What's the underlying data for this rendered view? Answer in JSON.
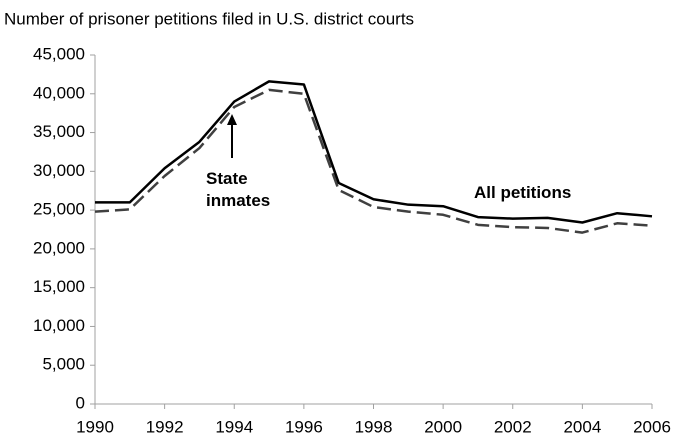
{
  "chart_data": {
    "type": "line",
    "title": "Number of prisoner petitions filed in U.S. district courts",
    "x": [
      1990,
      1991,
      1992,
      1993,
      1994,
      1995,
      1996,
      1997,
      1998,
      1999,
      2000,
      2001,
      2002,
      2003,
      2004,
      2005,
      2006
    ],
    "series": [
      {
        "name": "All petitions",
        "color": "#000000",
        "dash": "solid",
        "values": [
          26000,
          26000,
          30400,
          33800,
          39000,
          41600,
          41200,
          28500,
          26400,
          25700,
          25500,
          24100,
          23900,
          24000,
          23400,
          24600,
          24200
        ]
      },
      {
        "name": "State inmates",
        "color": "#404040",
        "dash": "dashed",
        "values": [
          24800,
          25100,
          29400,
          33000,
          38300,
          40500,
          40000,
          27600,
          25400,
          24800,
          24400,
          23100,
          22800,
          22700,
          22100,
          23300,
          23000
        ]
      }
    ],
    "xlim": [
      1990,
      2006
    ],
    "xticks": [
      1990,
      1992,
      1994,
      1996,
      1998,
      2000,
      2002,
      2004,
      2006
    ],
    "ylim": [
      0,
      45000
    ],
    "yticks": [
      0,
      {
        "value": 5000,
        "label": "5,000"
      },
      {
        "value": 10000,
        "label": "10,000"
      },
      {
        "value": 15000,
        "label": "15,000"
      },
      {
        "value": 20000,
        "label": "20,000"
      },
      {
        "value": 25000,
        "label": "25,000"
      },
      {
        "value": 30000,
        "label": "30,000"
      },
      {
        "value": 35000,
        "label": "35,000"
      },
      {
        "value": 40000,
        "label": "40,000"
      },
      {
        "value": 45000,
        "label": "45,000"
      }
    ],
    "grid": false
  }
}
